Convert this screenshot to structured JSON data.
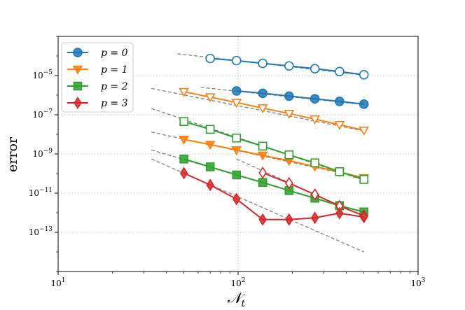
{
  "chart_data": {
    "type": "line",
    "xscale": "log",
    "yscale": "log",
    "xlabel": "𝒩",
    "xlabel_sub": "t",
    "ylabel": "error",
    "xlim": [
      10,
      1000
    ],
    "ylim": [
      1e-15,
      0.001
    ],
    "grid": true,
    "legend_position": "upper-left",
    "x_ticks": [
      {
        "value": 10,
        "base": "10",
        "exp": "1"
      },
      {
        "value": 100,
        "base": "10",
        "exp": "2"
      },
      {
        "value": 1000,
        "base": "10",
        "exp": "3"
      }
    ],
    "y_ticks": [
      {
        "value": 1e-05,
        "base": "10",
        "exp": "−5"
      },
      {
        "value": 1e-07,
        "base": "10",
        "exp": "−7"
      },
      {
        "value": 1e-09,
        "base": "10",
        "exp": "−9"
      },
      {
        "value": 1e-11,
        "base": "10",
        "exp": "−11"
      },
      {
        "value": 1e-13,
        "base": "10",
        "exp": "−13"
      }
    ],
    "legend": [
      {
        "label": "p = 0",
        "color": "#1f77b4",
        "marker": "circle"
      },
      {
        "label": "p = 1",
        "color": "#ff7f0e",
        "marker": "triangle-down"
      },
      {
        "label": "p = 2",
        "color": "#2ca02c",
        "marker": "square"
      },
      {
        "label": "p = 3",
        "color": "#d62728",
        "marker": "diamond"
      }
    ],
    "series": [
      {
        "name": "p = 0 (hollow)",
        "color": "#1f77b4",
        "marker": "circle",
        "filled": false,
        "x": [
          70,
          98,
          137,
          192,
          267,
          366,
          500
        ],
        "y": [
          7.5e-05,
          5.8e-05,
          4.2e-05,
          3.1e-05,
          2.25e-05,
          1.6e-05,
          1.1e-05
        ]
      },
      {
        "name": "p = 0 (filled)",
        "color": "#1f77b4",
        "marker": "circle",
        "filled": true,
        "x": [
          98,
          137,
          192,
          267,
          366,
          500
        ],
        "y": [
          1.65e-06,
          1.25e-06,
          9e-07,
          6.5e-07,
          4.8e-07,
          3.5e-07
        ]
      },
      {
        "name": "p = 1 (hollow)",
        "color": "#ff7f0e",
        "marker": "triangle-down",
        "filled": false,
        "x": [
          50,
          70,
          98,
          137,
          192,
          267,
          366,
          500
        ],
        "y": [
          1.5e-06,
          8e-07,
          4.2e-07,
          2.2e-07,
          1.15e-07,
          6e-08,
          3.1e-08,
          1.6e-08
        ]
      },
      {
        "name": "p = 1 (filled)",
        "color": "#ff7f0e",
        "marker": "triangle-down",
        "filled": true,
        "x": [
          50,
          70,
          98,
          137,
          192,
          267,
          366,
          500
        ],
        "y": [
          5.5e-09,
          3e-09,
          1.6e-09,
          8.5e-10,
          4.5e-10,
          2.3e-10,
          1.2e-10,
          6e-11
        ]
      },
      {
        "name": "p = 2 (hollow)",
        "color": "#2ca02c",
        "marker": "square",
        "filled": false,
        "x": [
          50,
          70,
          98,
          137,
          192,
          267,
          366,
          500
        ],
        "y": [
          4.5e-08,
          1.8e-08,
          6.5e-09,
          2.5e-09,
          9e-10,
          3.5e-10,
          1.25e-10,
          5e-11
        ]
      },
      {
        "name": "p = 2 (filled)",
        "color": "#2ca02c",
        "marker": "square",
        "filled": true,
        "x": [
          50,
          70,
          98,
          137,
          192,
          267,
          366,
          500
        ],
        "y": [
          5.5e-10,
          2.2e-10,
          8.5e-11,
          3.5e-11,
          1.35e-11,
          5.5e-12,
          2.3e-12,
          1.1e-12
        ]
      },
      {
        "name": "p = 3 (hollow)",
        "color": "#d62728",
        "marker": "diamond",
        "filled": false,
        "x": [
          137,
          192,
          267,
          366,
          500
        ],
        "y": [
          1.1e-10,
          3.2e-11,
          8.5e-12,
          2.2e-12,
          7e-13
        ]
      },
      {
        "name": "p = 3 (filled)",
        "color": "#d62728",
        "marker": "diamond",
        "filled": true,
        "x": [
          50,
          70,
          98,
          137,
          192,
          267,
          366,
          500
        ],
        "y": [
          1.05e-10,
          2.6e-11,
          5e-12,
          4.5e-13,
          4.5e-13,
          5.5e-13,
          9.5e-13,
          6e-13
        ]
      }
    ],
    "reference_lines": [
      {
        "x": [
          46,
          500
        ],
        "y": [
          0.00013,
          1.05e-05
        ]
      },
      {
        "x": [
          62,
          500
        ],
        "y": [
          2.5e-06,
          3.3e-07
        ]
      },
      {
        "x": [
          33,
          500
        ],
        "y": [
          2.2e-06,
          1.5e-08
        ]
      },
      {
        "x": [
          33,
          500
        ],
        "y": [
          1.3e-08,
          6e-11
        ]
      },
      {
        "x": [
          33,
          500
        ],
        "y": [
          2.1e-07,
          4.5e-11
        ]
      },
      {
        "x": [
          33,
          500
        ],
        "y": [
          1.6e-09,
          1e-12
        ]
      },
      {
        "x": [
          98,
          500
        ],
        "y": [
          5.5e-10,
          6.5e-13
        ]
      },
      {
        "x": [
          33,
          500
        ],
        "y": [
          5.5e-10,
          1e-14
        ]
      }
    ]
  }
}
